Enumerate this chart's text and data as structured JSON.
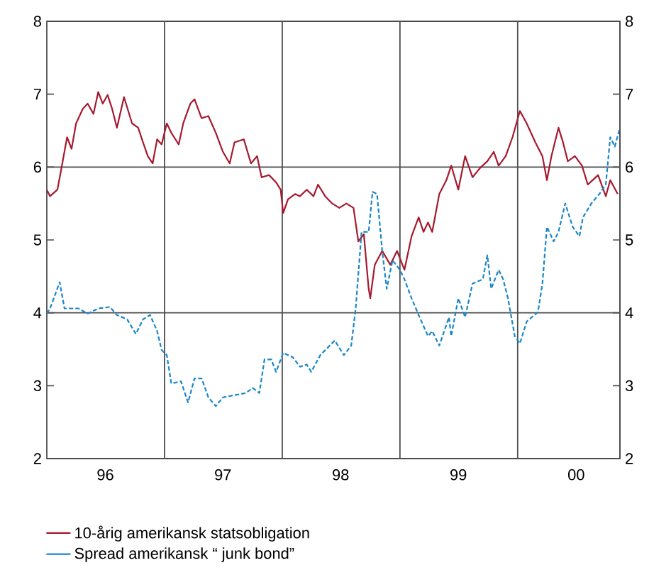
{
  "chart_data": {
    "type": "line",
    "xlim": [
      "1996-01-01",
      "2000-11-14"
    ],
    "ylim": [
      2,
      8
    ],
    "y2lim": [
      2,
      8
    ],
    "xticks": [
      {
        "value": "1996-07-01",
        "label": "96"
      },
      {
        "value": "1997-07-01",
        "label": "97"
      },
      {
        "value": "1998-07-01",
        "label": "98"
      },
      {
        "value": "1999-07-01",
        "label": "99"
      },
      {
        "value": "2000-07-01",
        "label": "00"
      }
    ],
    "yticks": [
      2,
      3,
      4,
      5,
      6,
      7,
      8
    ],
    "y2ticks": [
      2,
      3,
      4,
      5,
      6,
      7,
      8
    ],
    "grid": false,
    "legend": "bottom",
    "marker": "none",
    "ref_lines": [
      {
        "axis": "x",
        "value": "1997-01-01"
      },
      {
        "axis": "x",
        "value": "1998-01-01"
      },
      {
        "axis": "x",
        "value": "1999-01-01"
      },
      {
        "axis": "x",
        "value": "2000-01-01"
      },
      {
        "axis": "y",
        "value": 4
      },
      {
        "axis": "y",
        "value": 6
      }
    ],
    "series": [
      {
        "name": "10-årig amerikansk statsobligation",
        "color": "#a6192e",
        "line_style": "solid",
        "x": [
          "1996-01-01",
          "1996-01-11",
          "1996-02-03",
          "1996-02-17",
          "1996-03-04",
          "1996-03-18",
          "1996-04-01",
          "1996-04-22",
          "1996-05-07",
          "1996-05-25",
          "1996-06-09",
          "1996-06-23",
          "1996-07-08",
          "1996-07-22",
          "1996-08-06",
          "1996-08-28",
          "1996-09-22",
          "1996-10-11",
          "1996-10-26",
          "1996-11-10",
          "1996-11-25",
          "1996-12-09",
          "1996-12-23",
          "1997-01-08",
          "1997-01-22",
          "1997-02-14",
          "1997-02-28",
          "1997-03-22",
          "1997-04-04",
          "1997-04-26",
          "1997-05-17",
          "1997-06-09",
          "1997-07-01",
          "1997-07-22",
          "1997-08-06",
          "1997-09-04",
          "1997-09-26",
          "1997-10-15",
          "1997-10-29",
          "1997-11-21",
          "1997-12-13",
          "1997-12-27",
          "1998-01-04",
          "1998-01-19",
          "1998-02-10",
          "1998-02-25",
          "1998-03-18",
          "1998-04-08",
          "1998-04-22",
          "1998-05-14",
          "1998-06-05",
          "1998-06-27",
          "1998-07-19",
          "1998-08-10",
          "1998-08-25",
          "1998-09-11",
          "1998-09-26",
          "1998-10-01",
          "1998-10-15",
          "1998-11-07",
          "1998-12-02",
          "1998-12-23",
          "1999-01-15",
          "1999-02-06",
          "1999-02-28",
          "1999-03-15",
          "1999-03-29",
          "1999-04-11",
          "1999-05-03",
          "1999-05-25",
          "1999-06-09",
          "1999-07-01",
          "1999-07-22",
          "1999-08-14",
          "1999-09-07",
          "1999-09-29",
          "1999-10-19",
          "1999-11-03",
          "1999-11-25",
          "1999-12-16",
          "2000-01-08",
          "2000-01-29",
          "2000-02-25",
          "2000-03-18",
          "2000-04-01",
          "2000-04-15",
          "2000-05-07",
          "2000-05-21",
          "2000-06-05",
          "2000-06-27",
          "2000-07-19",
          "2000-08-06",
          "2000-08-21",
          "2000-09-07",
          "2000-10-01",
          "2000-10-15",
          "2000-11-07"
        ],
        "values": [
          5.69,
          5.6,
          5.69,
          6.02,
          6.41,
          6.25,
          6.6,
          6.8,
          6.87,
          6.73,
          7.03,
          6.87,
          6.99,
          6.8,
          6.54,
          6.96,
          6.6,
          6.54,
          6.34,
          6.15,
          6.05,
          6.38,
          6.31,
          6.6,
          6.47,
          6.31,
          6.6,
          6.87,
          6.93,
          6.67,
          6.7,
          6.47,
          6.21,
          6.05,
          6.34,
          6.38,
          6.05,
          6.15,
          5.86,
          5.89,
          5.79,
          5.69,
          5.37,
          5.56,
          5.63,
          5.6,
          5.69,
          5.6,
          5.76,
          5.6,
          5.5,
          5.44,
          5.5,
          5.44,
          4.98,
          5.08,
          4.33,
          4.2,
          4.66,
          4.85,
          4.66,
          4.85,
          4.59,
          5.05,
          5.31,
          5.11,
          5.24,
          5.11,
          5.63,
          5.82,
          6.02,
          5.69,
          6.15,
          5.86,
          5.99,
          6.08,
          6.21,
          6.02,
          6.15,
          6.41,
          6.77,
          6.6,
          6.34,
          6.15,
          5.82,
          6.15,
          6.54,
          6.34,
          6.08,
          6.15,
          6.02,
          5.76,
          5.82,
          5.89,
          5.6,
          5.82,
          5.63
        ]
      },
      {
        "name": "Spread amerikansk “ junk bond”",
        "color": "#1a86c8",
        "line_style": "dashed",
        "x": [
          "1996-01-01",
          "1996-01-11",
          "1996-02-10",
          "1996-02-25",
          "1996-04-08",
          "1996-05-07",
          "1996-06-09",
          "1996-07-15",
          "1996-08-06",
          "1996-09-07",
          "1996-10-04",
          "1996-10-26",
          "1996-11-17",
          "1996-12-09",
          "1996-12-23",
          "1997-01-08",
          "1997-01-22",
          "1997-02-21",
          "1997-03-15",
          "1997-04-04",
          "1997-04-26",
          "1997-05-17",
          "1997-06-09",
          "1997-07-01",
          "1997-08-06",
          "1997-09-11",
          "1997-10-01",
          "1997-10-22",
          "1997-11-07",
          "1997-11-28",
          "1997-12-13",
          "1998-01-04",
          "1998-02-03",
          "1998-02-25",
          "1998-03-18",
          "1998-04-01",
          "1998-04-29",
          "1998-06-13",
          "1998-07-11",
          "1998-08-03",
          "1998-08-17",
          "1998-09-04",
          "1998-09-26",
          "1998-10-08",
          "1998-10-22",
          "1998-11-07",
          "1998-11-21",
          "1998-12-09",
          "1999-01-01",
          "1999-01-15",
          "1999-02-06",
          "1999-02-28",
          "1999-03-29",
          "1999-04-11",
          "1999-05-03",
          "1999-06-02",
          "1999-06-09",
          "1999-07-01",
          "1999-07-22",
          "1999-08-14",
          "1999-09-15",
          "1999-09-29",
          "1999-10-11",
          "1999-11-03",
          "1999-11-17",
          "1999-12-02",
          "1999-12-23",
          "2000-01-08",
          "2000-01-29",
          "2000-03-04",
          "2000-03-18",
          "2000-04-01",
          "2000-04-22",
          "2000-05-07",
          "2000-05-28",
          "2000-06-20",
          "2000-07-11",
          "2000-07-22",
          "2000-08-17",
          "2000-09-11",
          "2000-10-01",
          "2000-10-15",
          "2000-10-29",
          "2000-11-14"
        ],
        "values": [
          3.99,
          4.06,
          4.42,
          4.06,
          4.06,
          3.99,
          4.06,
          4.08,
          3.97,
          3.91,
          3.71,
          3.91,
          3.97,
          3.75,
          3.49,
          3.42,
          3.03,
          3.06,
          2.77,
          3.1,
          3.1,
          2.84,
          2.72,
          2.84,
          2.87,
          2.9,
          2.97,
          2.9,
          3.36,
          3.36,
          3.19,
          3.45,
          3.39,
          3.26,
          3.29,
          3.19,
          3.42,
          3.62,
          3.42,
          3.55,
          4.07,
          5.11,
          5.11,
          5.66,
          5.63,
          4.85,
          4.33,
          4.72,
          4.59,
          4.46,
          4.2,
          3.97,
          3.68,
          3.75,
          3.55,
          3.94,
          3.68,
          4.2,
          3.94,
          4.4,
          4.46,
          4.79,
          4.33,
          4.59,
          4.46,
          4.2,
          3.68,
          3.58,
          3.88,
          4.01,
          4.4,
          5.18,
          4.98,
          5.11,
          5.5,
          5.18,
          5.05,
          5.31,
          5.5,
          5.63,
          5.76,
          6.41,
          6.28,
          6.54
        ]
      }
    ]
  }
}
